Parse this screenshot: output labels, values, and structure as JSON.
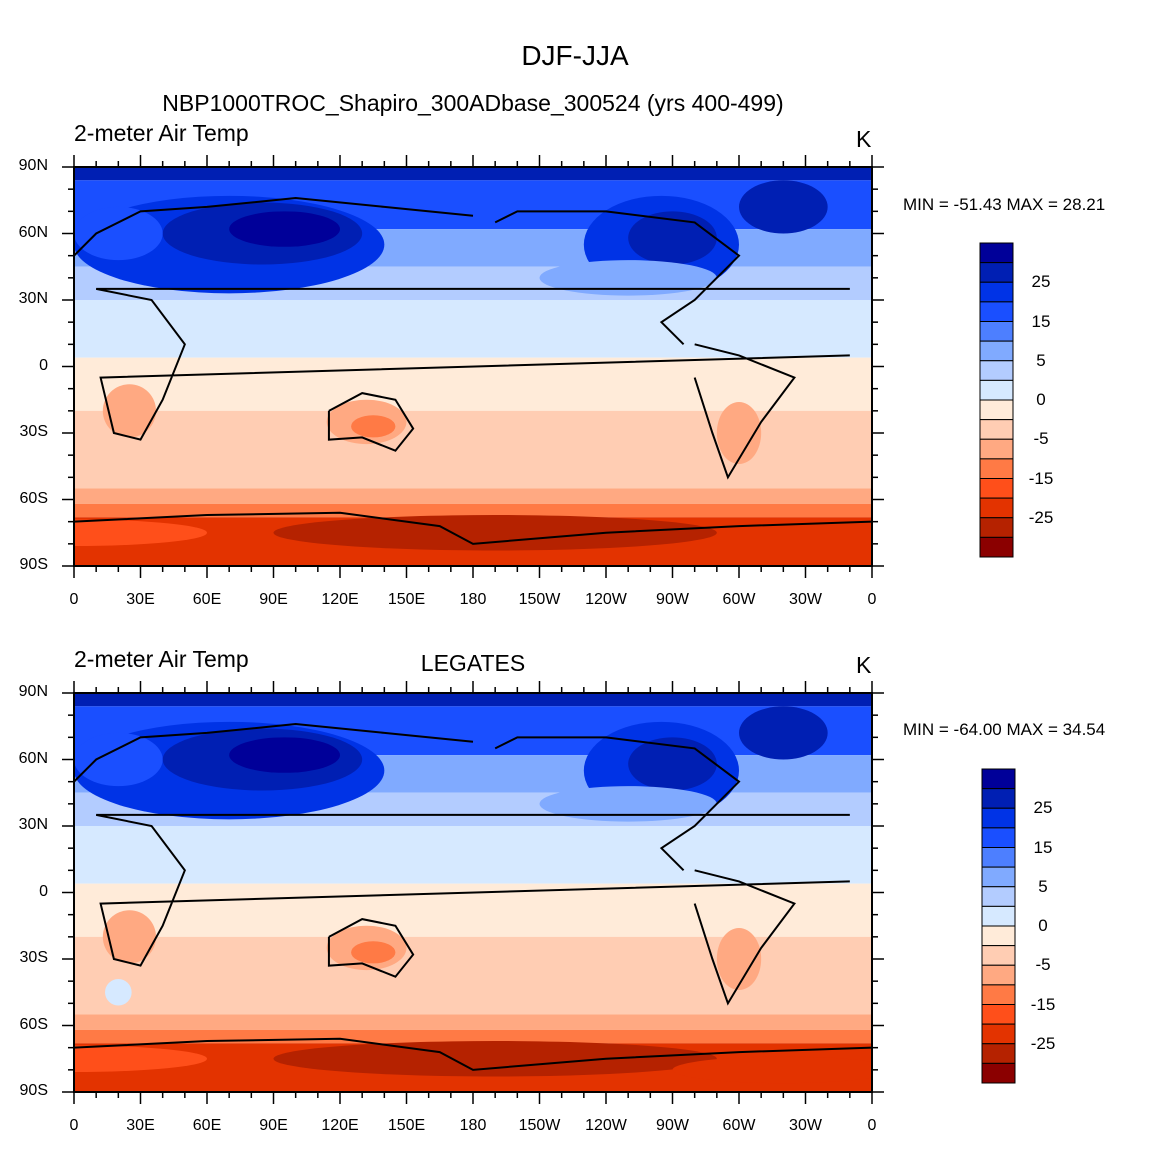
{
  "figure_title": "DJF-JJA",
  "panels": [
    {
      "left_title": "2-meter Air Temp",
      "center_title": "NBP1000TROC_Shapiro_300ADbase_300524 (yrs 400-499)",
      "units": "K",
      "min_max": "MIN = -51.43 MAX =  28.21"
    },
    {
      "left_title": "2-meter Air Temp",
      "center_title": "LEGATES",
      "units": "K",
      "min_max": "MIN = -64.00 MAX =  34.54"
    }
  ],
  "lat_labels": [
    "90N",
    "60N",
    "30N",
    "0",
    "30S",
    "60S",
    "90S"
  ],
  "lon_labels": [
    "0",
    "30E",
    "60E",
    "90E",
    "120E",
    "150E",
    "180",
    "150W",
    "120W",
    "90W",
    "60W",
    "30W",
    "0"
  ],
  "colorbar": {
    "colors": [
      "#8b0000",
      "#b52200",
      "#e33300",
      "#ff4f1a",
      "#ff7a45",
      "#ffa982",
      "#ffcdb3",
      "#ffebd9",
      "#d6e9ff",
      "#b3ccff",
      "#80aaff",
      "#4d7fff",
      "#1a4fff",
      "#0033e6",
      "#001fb3",
      "#000099"
    ],
    "labels": [
      "25",
      "15",
      "5",
      "0",
      "-5",
      "-15",
      "-25"
    ]
  },
  "chart_data": {
    "type": "heatmap",
    "title": "DJF-JJA",
    "variable": "2-meter Air Temp",
    "units": "K",
    "projection": "cylindrical equidistant",
    "lon_range": [
      0,
      360
    ],
    "lat_range": [
      -90,
      90
    ],
    "grid": false
  }
}
